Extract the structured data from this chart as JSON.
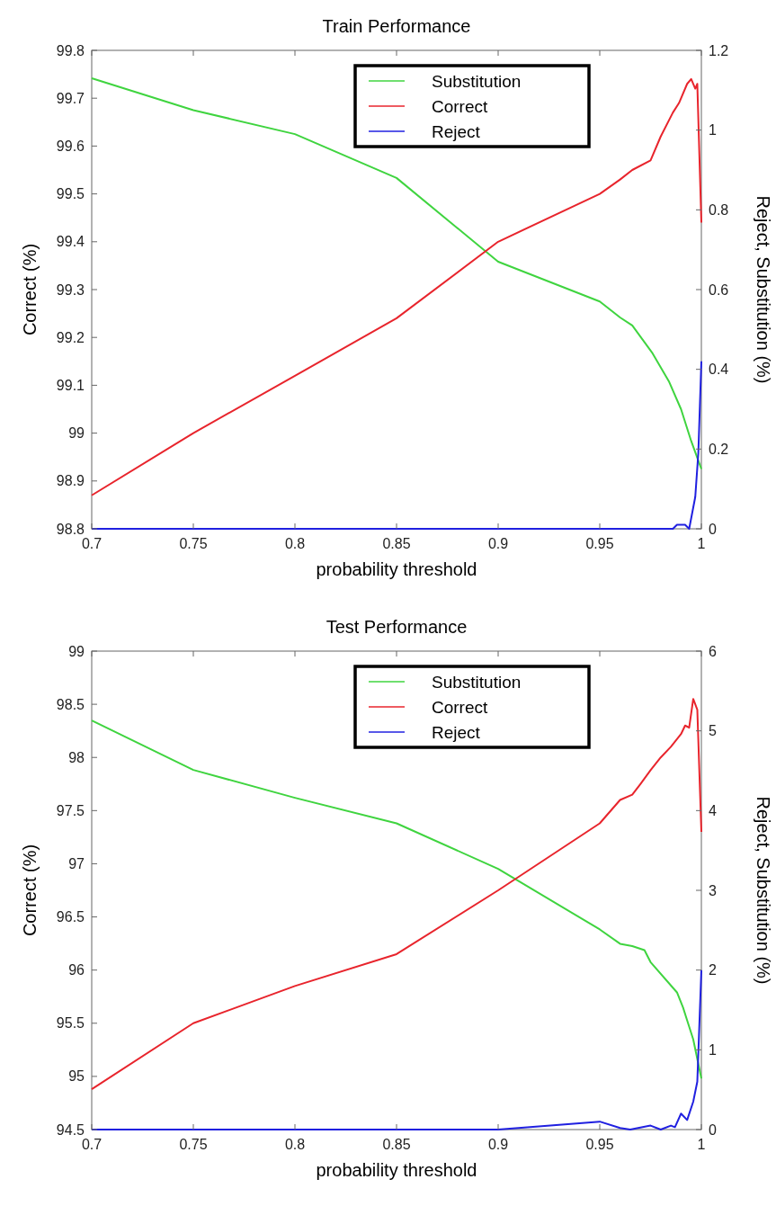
{
  "chart_data": [
    {
      "type": "line",
      "title": "Train Performance",
      "xlabel": "probability threshold",
      "ylabel": "Correct (%)",
      "y2label": "Reject, Substitution (%)",
      "legend": "top right",
      "grid": false,
      "xlim": [
        0.7,
        1
      ],
      "xticks": [
        0.7,
        0.75,
        0.8,
        0.85,
        0.9,
        0.95,
        1
      ],
      "ylim": [
        98.8,
        99.8
      ],
      "yticks": [
        98.8,
        98.9,
        99,
        99.1,
        99.2,
        99.3,
        99.4,
        99.5,
        99.6,
        99.7,
        99.8
      ],
      "y2lim": [
        0,
        1.2
      ],
      "y2ticks": [
        0,
        0.2,
        0.4,
        0.6,
        0.8,
        1,
        1.2
      ],
      "series": [
        {
          "name": "Substitution",
          "color": "#3fd43f",
          "axis": "y2",
          "x": [
            0.7,
            0.75,
            0.8,
            0.85,
            0.9,
            0.95,
            0.96,
            0.966,
            0.976,
            0.984,
            0.99,
            0.995,
            1.0
          ],
          "values": [
            1.13,
            1.05,
            0.99,
            0.88,
            0.67,
            0.57,
            0.53,
            0.51,
            0.44,
            0.37,
            0.3,
            0.22,
            0.15
          ]
        },
        {
          "name": "Correct",
          "color": "#e8242c",
          "x": [
            0.7,
            0.75,
            0.8,
            0.85,
            0.9,
            0.95,
            0.96,
            0.966,
            0.975,
            0.98,
            0.986,
            0.989,
            0.993,
            0.995,
            0.997,
            0.998,
            1.0
          ],
          "values": [
            98.87,
            99.0,
            99.12,
            99.24,
            99.4,
            99.5,
            99.53,
            99.55,
            99.57,
            99.62,
            99.67,
            99.69,
            99.73,
            99.74,
            99.72,
            99.73,
            99.44
          ]
        },
        {
          "name": "Reject",
          "color": "#2020e0",
          "axis": "y2",
          "x": [
            0.7,
            0.986,
            0.988,
            0.992,
            0.994,
            0.997,
            0.9985,
            1.0
          ],
          "values": [
            0,
            0,
            0.01,
            0.01,
            0,
            0.08,
            0.19,
            0.42
          ]
        }
      ]
    },
    {
      "type": "line",
      "title": "Test Performance",
      "xlabel": "probability threshold",
      "ylabel": "Correct (%)",
      "y2label": "Reject, Substitution (%)",
      "legend": "top right",
      "grid": false,
      "xlim": [
        0.7,
        1
      ],
      "xticks": [
        0.7,
        0.75,
        0.8,
        0.85,
        0.9,
        0.95,
        1
      ],
      "ylim": [
        94.5,
        99
      ],
      "yticks": [
        94.5,
        95,
        95.5,
        96,
        96.5,
        97,
        97.5,
        98,
        98.5,
        99
      ],
      "y2lim": [
        0,
        6
      ],
      "y2ticks": [
        0,
        1,
        2,
        3,
        4,
        5,
        6
      ],
      "series": [
        {
          "name": "Substitution",
          "color": "#3fd43f",
          "axis": "y2",
          "x": [
            0.7,
            0.75,
            0.8,
            0.85,
            0.9,
            0.95,
            0.96,
            0.966,
            0.972,
            0.975,
            0.988,
            0.991,
            0.996,
            1.0
          ],
          "values": [
            5.13,
            4.51,
            4.16,
            3.84,
            3.27,
            2.51,
            2.33,
            2.3,
            2.25,
            2.1,
            1.72,
            1.53,
            1.13,
            0.64
          ]
        },
        {
          "name": "Correct",
          "color": "#e8242c",
          "x": [
            0.7,
            0.75,
            0.8,
            0.85,
            0.9,
            0.95,
            0.96,
            0.966,
            0.97,
            0.975,
            0.98,
            0.985,
            0.99,
            0.992,
            0.994,
            0.996,
            0.998,
            1.0
          ],
          "values": [
            94.88,
            95.5,
            95.85,
            96.15,
            96.75,
            97.38,
            97.6,
            97.65,
            97.75,
            97.88,
            98.0,
            98.1,
            98.22,
            98.3,
            98.28,
            98.55,
            98.45,
            97.3
          ]
        },
        {
          "name": "Reject",
          "color": "#2020e0",
          "axis": "y2",
          "x": [
            0.7,
            0.9,
            0.95,
            0.96,
            0.965,
            0.975,
            0.98,
            0.985,
            0.987,
            0.99,
            0.993,
            0.996,
            0.998,
            1.0
          ],
          "values": [
            0,
            0,
            0.1,
            0.02,
            0,
            0.05,
            0,
            0.05,
            0.03,
            0.2,
            0.12,
            0.35,
            0.6,
            2.0
          ]
        }
      ]
    }
  ]
}
